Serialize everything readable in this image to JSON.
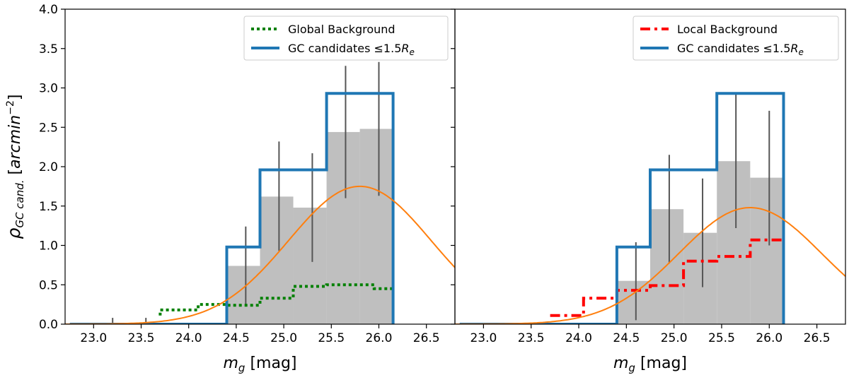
{
  "chart_data": [
    {
      "type": "step",
      "panel": "left",
      "xlabel_main": "m",
      "xlabel_sub": "g",
      "xlabel_unit": " [mag]",
      "ylabel_main": "ρ",
      "ylabel_sub": "GC cand.",
      "ylabel_unit_pre": " [",
      "ylabel_unit": "arcmin",
      "ylabel_unit_sup": "−2",
      "ylabel_unit_post": "]",
      "xlim": [
        22.7,
        26.8
      ],
      "ylim": [
        0,
        4.0
      ],
      "xticks": [
        "23.0",
        "23.5",
        "24.0",
        "24.5",
        "25.0",
        "25.5",
        "26.0",
        "26.5"
      ],
      "yticks": [
        "0.0",
        "0.5",
        "1.0",
        "1.5",
        "2.0",
        "2.5",
        "3.0",
        "3.5",
        "4.0"
      ],
      "legend_position": "top-right",
      "gray_bars": {
        "edges": [
          22.75,
          23.05,
          23.4,
          23.75,
          24.05,
          24.4,
          24.75,
          25.1,
          25.45,
          25.8,
          26.15
        ],
        "values": [
          0.0,
          0.0,
          0.0,
          0.0,
          0.0,
          0.74,
          1.62,
          1.48,
          2.44,
          2.48
        ],
        "errors": [
          {
            "x": 23.2,
            "lo": 0.0,
            "hi": 0.08
          },
          {
            "x": 23.55,
            "lo": 0.0,
            "hi": 0.08
          },
          {
            "x": 24.6,
            "lo": 0.24,
            "hi": 1.24
          },
          {
            "x": 24.95,
            "lo": 0.93,
            "hi": 2.32
          },
          {
            "x": 25.3,
            "lo": 0.79,
            "hi": 2.17
          },
          {
            "x": 25.65,
            "lo": 1.6,
            "hi": 3.28
          },
          {
            "x": 26.0,
            "lo": 1.63,
            "hi": 3.33
          }
        ]
      },
      "background": {
        "name": "Global Background",
        "style": "dotted",
        "color": "#008000",
        "x": [
          23.7,
          23.7,
          23.8,
          23.8,
          24.1,
          24.1,
          24.4,
          24.4,
          24.5,
          24.5,
          24.75,
          24.75,
          25.1,
          25.1,
          25.45,
          25.45,
          25.8,
          25.8,
          25.95,
          25.95,
          26.15
        ],
        "y": [
          0.11,
          0.18,
          0.18,
          0.18,
          0.18,
          0.25,
          0.25,
          0.24,
          0.24,
          0.24,
          0.24,
          0.33,
          0.33,
          0.48,
          0.48,
          0.5,
          0.5,
          0.5,
          0.5,
          0.45,
          0.45
        ]
      },
      "gc": {
        "name": "GC candidates",
        "name_tail": "≤1.5",
        "name_var": "R",
        "name_sub": "e",
        "color": "#1f77b4",
        "edges": [
          22.75,
          23.05,
          23.4,
          23.75,
          24.05,
          24.4,
          24.75,
          25.1,
          25.45,
          25.8,
          26.15
        ],
        "values": [
          0.0,
          0.0,
          0.0,
          0.0,
          0.0,
          0.98,
          1.96,
          1.96,
          2.93,
          2.93
        ]
      },
      "gaussian": {
        "color": "#ff7f0e",
        "mu": 25.8,
        "sigma": 0.75,
        "amp": 1.75
      }
    },
    {
      "type": "step",
      "panel": "right",
      "xlabel_main": "m",
      "xlabel_sub": "g",
      "xlabel_unit": " [mag]",
      "xlim": [
        22.7,
        26.8
      ],
      "ylim": [
        0,
        4.0
      ],
      "xticks": [
        "23.0",
        "23.5",
        "24.0",
        "24.5",
        "25.0",
        "25.5",
        "26.0",
        "26.5"
      ],
      "legend_position": "top-right",
      "gray_bars": {
        "edges": [
          22.75,
          23.05,
          23.4,
          23.75,
          24.05,
          24.4,
          24.75,
          25.1,
          25.45,
          25.8,
          26.15
        ],
        "values": [
          0.0,
          0.0,
          0.0,
          0.0,
          0.0,
          0.55,
          1.46,
          1.16,
          2.07,
          1.86
        ],
        "errors": [
          {
            "x": 24.6,
            "lo": 0.05,
            "hi": 1.04
          },
          {
            "x": 24.95,
            "lo": 0.77,
            "hi": 2.15
          },
          {
            "x": 25.3,
            "lo": 0.47,
            "hi": 1.85
          },
          {
            "x": 25.65,
            "lo": 1.22,
            "hi": 2.92
          },
          {
            "x": 26.0,
            "lo": 1.0,
            "hi": 2.71
          }
        ]
      },
      "background": {
        "name": "Local Background",
        "style": "dashdot",
        "color": "#ff0000",
        "x": [
          23.7,
          24.05,
          24.05,
          24.4,
          24.4,
          24.75,
          24.75,
          25.1,
          25.1,
          25.45,
          25.45,
          25.8,
          25.8,
          26.15
        ],
        "y": [
          0.11,
          0.11,
          0.33,
          0.33,
          0.43,
          0.43,
          0.49,
          0.49,
          0.8,
          0.8,
          0.86,
          0.86,
          1.07,
          1.07
        ]
      },
      "gc": {
        "name": "GC candidates",
        "name_tail": "≤1.5",
        "name_var": "R",
        "name_sub": "e",
        "color": "#1f77b4",
        "edges": [
          22.75,
          23.05,
          23.4,
          23.75,
          24.05,
          24.4,
          24.75,
          25.1,
          25.45,
          25.8,
          26.15
        ],
        "values": [
          0.0,
          0.0,
          0.0,
          0.0,
          0.0,
          0.98,
          1.96,
          1.96,
          2.93,
          2.93
        ]
      },
      "gaussian": {
        "color": "#ff7f0e",
        "mu": 25.8,
        "sigma": 0.75,
        "amp": 1.48
      }
    }
  ]
}
